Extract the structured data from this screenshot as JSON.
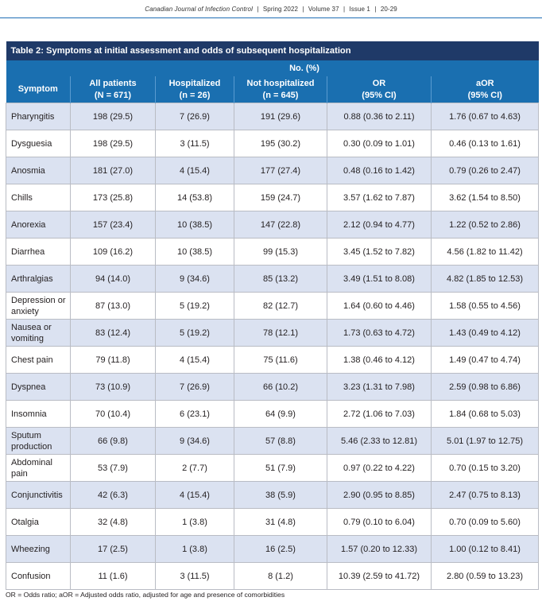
{
  "running_head": {
    "journal": "Canadian Journal of Infection Control",
    "issue_date": "Spring 2022",
    "volume": "Volume 37",
    "issue": "Issue 1",
    "pages": "20-29",
    "separator": "|"
  },
  "table": {
    "title": "Table 2: Symptoms at initial assessment and odds of subsequent hospitalization",
    "group_header": "No. (%)",
    "columns": [
      {
        "line1": "Symptom",
        "line2": ""
      },
      {
        "line1": "All patients",
        "line2": "(N = 671)"
      },
      {
        "line1": "Hospitalized",
        "line2": "(n = 26)"
      },
      {
        "line1": "Not hospitalized",
        "line2": "(n = 645)"
      },
      {
        "line1": "OR",
        "line2": "(95% CI)"
      },
      {
        "line1": "aOR",
        "line2": "(95% CI)"
      }
    ],
    "rows": [
      [
        "Pharyngitis",
        "198 (29.5)",
        "7 (26.9)",
        "191 (29.6)",
        "0.88 (0.36 to 2.11)",
        "1.76 (0.67 to 4.63)"
      ],
      [
        "Dysguesia",
        "198 (29.5)",
        "3 (11.5)",
        "195 (30.2)",
        "0.30 (0.09 to 1.01)",
        "0.46 (0.13 to 1.61)"
      ],
      [
        "Anosmia",
        "181 (27.0)",
        "4 (15.4)",
        "177 (27.4)",
        "0.48 (0.16 to 1.42)",
        "0.79 (0.26 to 2.47)"
      ],
      [
        "Chills",
        "173 (25.8)",
        "14 (53.8)",
        "159 (24.7)",
        "3.57 (1.62 to 7.87)",
        "3.62 (1.54 to 8.50)"
      ],
      [
        "Anorexia",
        "157 (23.4)",
        "10 (38.5)",
        "147 (22.8)",
        "2.12 (0.94 to 4.77)",
        "1.22 (0.52 to 2.86)"
      ],
      [
        "Diarrhea",
        "109 (16.2)",
        "10 (38.5)",
        "99 (15.3)",
        "3.45 (1.52 to 7.82)",
        "4.56 (1.82 to 11.42)"
      ],
      [
        "Arthralgias",
        "94 (14.0)",
        "9 (34.6)",
        "85 (13.2)",
        "3.49 (1.51 to 8.08)",
        "4.82 (1.85 to 12.53)"
      ],
      [
        "Depression or anxiety",
        "87 (13.0)",
        "5 (19.2)",
        "82 (12.7)",
        "1.64 (0.60 to 4.46)",
        "1.58 (0.55 to 4.56)"
      ],
      [
        "Nausea or vomiting",
        "83 (12.4)",
        "5 (19.2)",
        "78 (12.1)",
        "1.73 (0.63 to 4.72)",
        "1.43 (0.49 to 4.12)"
      ],
      [
        "Chest pain",
        "79 (11.8)",
        "4 (15.4)",
        "75 (11.6)",
        "1.38 (0.46 to 4.12)",
        "1.49 (0.47 to 4.74)"
      ],
      [
        "Dyspnea",
        "73 (10.9)",
        "7 (26.9)",
        "66 (10.2)",
        "3.23 (1.31 to 7.98)",
        "2.59 (0.98 to 6.86)"
      ],
      [
        "Insomnia",
        "70 (10.4)",
        "6 (23.1)",
        "64 (9.9)",
        "2.72 (1.06 to 7.03)",
        "1.84 (0.68 to 5.03)"
      ],
      [
        "Sputum production",
        "66 (9.8)",
        "9 (34.6)",
        "57 (8.8)",
        "5.46 (2.33 to 12.81)",
        "5.01 (1.97 to 12.75)"
      ],
      [
        "Abdominal pain",
        "53 (7.9)",
        "2 (7.7)",
        "51 (7.9)",
        "0.97 (0.22 to 4.22)",
        "0.70 (0.15 to 3.20)"
      ],
      [
        "Conjunctivitis",
        "42 (6.3)",
        "4 (15.4)",
        "38 (5.9)",
        "2.90 (0.95 to 8.85)",
        "2.47 (0.75 to 8.13)"
      ],
      [
        "Otalgia",
        "32 (4.8)",
        "1 (3.8)",
        "31 (4.8)",
        "0.79 (0.10 to 6.04)",
        "0.70 (0.09 to 5.60)"
      ],
      [
        "Wheezing",
        "17 (2.5)",
        "1 (3.8)",
        "16 (2.5)",
        "1.57 (0.20 to 12.33)",
        "1.00 (0.12 to 8.41)"
      ],
      [
        "Confusion",
        "11 (1.6)",
        "3 (11.5)",
        "8 (1.2)",
        "10.39 (2.59 to 41.72)",
        "2.80 (0.59 to 13.23)"
      ]
    ]
  },
  "footnote": "OR = Odds ratio; aOR = Adjusted odds ratio, adjusted for age and presence of comorbidities",
  "colors": {
    "title_band": "#1f3a68",
    "header_band": "#1a6fb0",
    "shaded_row": "#dbe2f1",
    "rule": "#1f6fb5"
  }
}
